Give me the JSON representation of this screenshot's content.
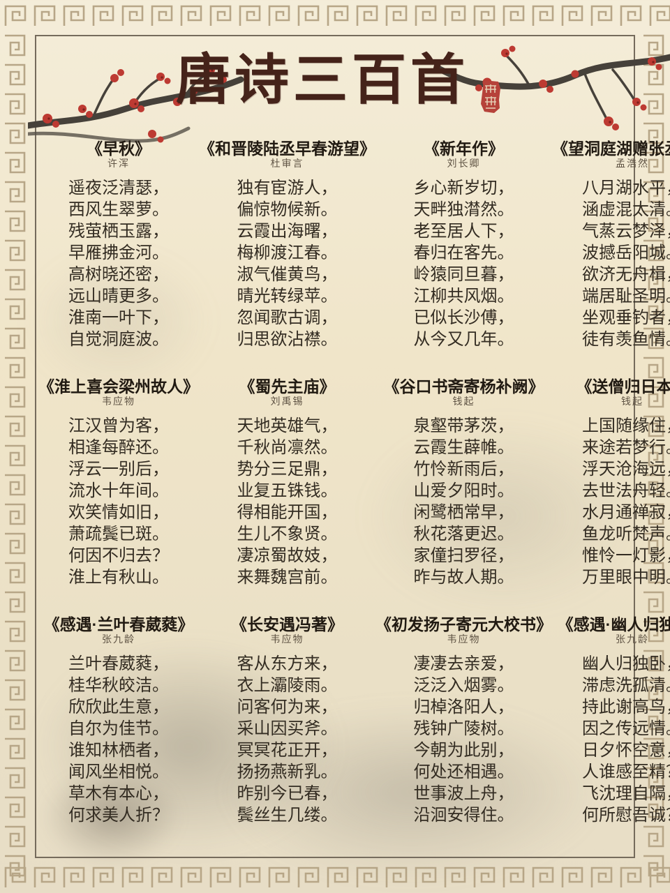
{
  "page": {
    "title": "唐诗三百首"
  },
  "poems": [
    {
      "title": "《早秋》",
      "author": "许浑",
      "lines": [
        "遥夜泛清瑟，",
        "西风生翠萝。",
        "残萤栖玉露，",
        "早雁拂金河。",
        "高树晓还密，",
        "远山晴更多。",
        "淮南一叶下，",
        "自觉洞庭波。"
      ]
    },
    {
      "title": "《和晋陵陆丞早春游望》",
      "author": "杜审言",
      "lines": [
        "独有宦游人，",
        "偏惊物候新。",
        "云霞出海曙，",
        "梅柳渡江春。",
        "淑气催黄鸟，",
        "晴光转绿苹。",
        "忽闻歌古调，",
        "归思欲沾襟。"
      ]
    },
    {
      "title": "《新年作》",
      "author": "刘长卿",
      "lines": [
        "乡心新岁切，",
        "天畔独潸然。",
        "老至居人下，",
        "春归在客先。",
        "岭猿同旦暮，",
        "江柳共风烟。",
        "已似长沙傅，",
        "从今又几年。"
      ]
    },
    {
      "title": "《望洞庭湖赠张丞相》",
      "author": "孟浩然",
      "lines": [
        "八月湖水平，",
        "涵虚混太清。",
        "气蒸云梦泽，",
        "波撼岳阳城。",
        "欲济无舟楫，",
        "端居耻圣明。",
        "坐观垂钓者，",
        "徒有羡鱼情。"
      ]
    },
    {
      "title": "《淮上喜会梁州故人》",
      "author": "韦应物",
      "lines": [
        "江汉曾为客，",
        "相逢每醉还。",
        "浮云一别后，",
        "流水十年间。",
        "欢笑情如旧，",
        "萧疏鬓已斑。",
        "何因不归去？",
        "淮上有秋山。"
      ]
    },
    {
      "title": "《蜀先主庙》",
      "author": "刘禹锡",
      "lines": [
        "天地英雄气，",
        "千秋尚凛然。",
        "势分三足鼎，",
        "业复五铢钱。",
        "得相能开国，",
        "生儿不象贤。",
        "凄凉蜀故妓，",
        "来舞魏宫前。"
      ]
    },
    {
      "title": "《谷口书斋寄杨补阙》",
      "author": "钱起",
      "lines": [
        "泉壑带茅茨，",
        "云霞生薜帷。",
        "竹怜新雨后，",
        "山爱夕阳时。",
        "闲鹭栖常早，",
        "秋花落更迟。",
        "家僮扫罗径，",
        "昨与故人期。"
      ]
    },
    {
      "title": "《送僧归日本》",
      "author": "钱起",
      "lines": [
        "上国随缘住，",
        "来途若梦行。",
        "浮天沧海远，",
        "去世法舟轻。",
        "水月通禅寂，",
        "鱼龙听梵声。",
        "惟怜一灯影，",
        "万里眼中明。"
      ]
    },
    {
      "title": "《感遇·兰叶春葳蕤》",
      "author": "张九龄",
      "lines": [
        "兰叶春葳蕤，",
        "桂华秋皎洁。",
        "欣欣此生意，",
        "自尔为佳节。",
        "谁知林栖者，",
        "闻风坐相悦。",
        "草木有本心，",
        "何求美人折？"
      ]
    },
    {
      "title": "《长安遇冯著》",
      "author": "韦应物",
      "lines": [
        "客从东方来，",
        "衣上灞陵雨。",
        "问客何为来，",
        "采山因买斧。",
        "冥冥花正开，",
        "扬扬燕新乳。",
        "昨别今已春，",
        "鬓丝生几缕。"
      ]
    },
    {
      "title": "《初发扬子寄元大校书》",
      "author": "韦应物",
      "lines": [
        "凄凄去亲爱，",
        "泛泛入烟雾。",
        "归棹洛阳人，",
        "残钟广陵树。",
        "今朝为此别，",
        "何处还相遇。",
        "世事波上舟，",
        "沿洄安得住。"
      ]
    },
    {
      "title": "《感遇·幽人归独卧》",
      "author": "张九龄",
      "lines": [
        "幽人归独卧，",
        "滞虑洗孤清。",
        "持此谢高鸟，",
        "因之传远情。",
        "日夕怀空意，",
        "人谁感至精？",
        "飞沈理自隔，",
        "何所慰吾诚？"
      ]
    }
  ]
}
